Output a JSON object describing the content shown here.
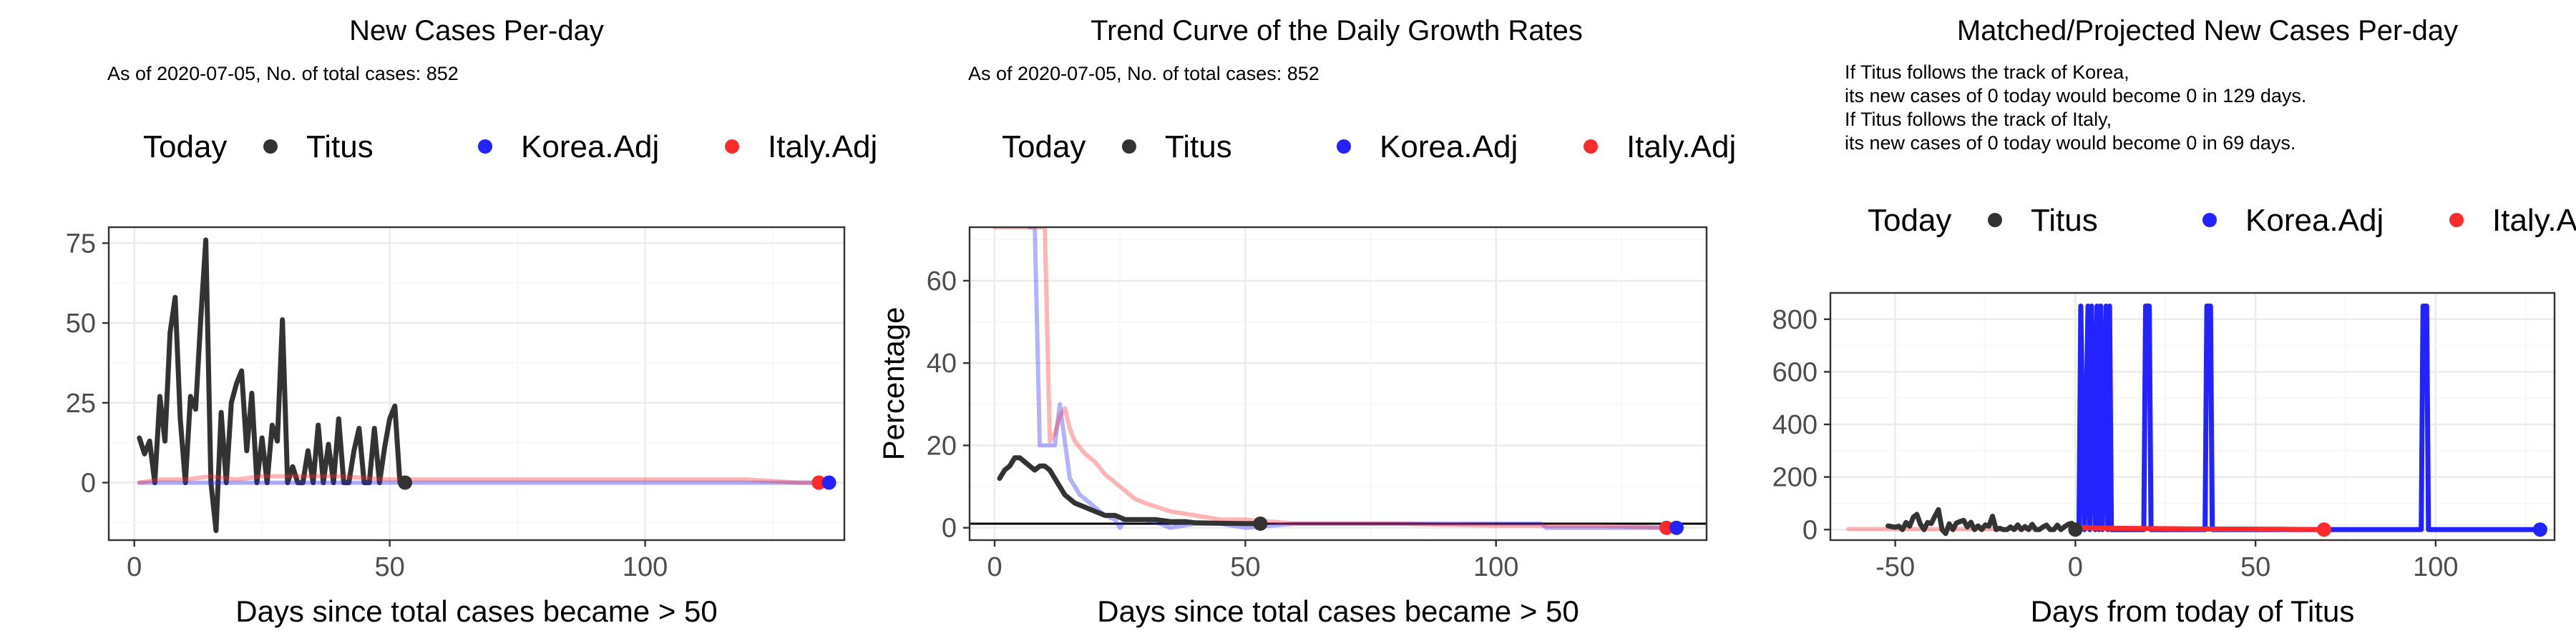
{
  "colors": {
    "titus": "#333333",
    "korea": "#2323ff",
    "italy": "#ff2a2a",
    "grid_major": "#ebebeb",
    "grid_minor": "#f5f5f5",
    "panel_border": "#333333"
  },
  "legend": {
    "title": "Today",
    "items": [
      {
        "label": "Titus",
        "color_key": "titus"
      },
      {
        "label": "Korea.Adj",
        "color_key": "korea"
      },
      {
        "label": "Italy.Adj",
        "color_key": "italy"
      }
    ]
  },
  "chart_data": [
    {
      "type": "line",
      "title": "New Cases Per-day",
      "subtitle_lines": [
        "As of 2020-07-05, No. of total cases: 852"
      ],
      "xlabel": "Days since total cases became > 50",
      "ylabel": "",
      "xlim": [
        -5,
        139
      ],
      "ylim": [
        -18,
        80
      ],
      "xticks": [
        0,
        50,
        100
      ],
      "yticks": [
        0,
        25,
        50,
        75
      ],
      "grid": true,
      "legend_position": "top",
      "series": [
        {
          "name": "Titus",
          "color_key": "titus",
          "opacity": 1,
          "x": [
            1,
            2,
            3,
            4,
            5,
            6,
            7,
            8,
            9,
            10,
            11,
            12,
            13,
            14,
            15,
            16,
            17,
            18,
            19,
            20,
            21,
            22,
            23,
            24,
            25,
            26,
            27,
            28,
            29,
            30,
            31,
            32,
            33,
            34,
            35,
            36,
            37,
            38,
            39,
            40,
            41,
            42,
            43,
            44,
            45,
            46,
            47,
            48,
            49,
            50,
            51,
            52,
            53
          ],
          "y": [
            14,
            9,
            13,
            0,
            27,
            13,
            47,
            58,
            20,
            0,
            27,
            23,
            51,
            76,
            0,
            -15,
            22,
            0,
            25,
            31,
            35,
            10,
            28,
            0,
            14,
            0,
            18,
            13,
            51,
            0,
            5,
            0,
            0,
            10,
            0,
            18,
            0,
            12,
            0,
            20,
            0,
            0,
            10,
            17,
            0,
            0,
            17,
            0,
            11,
            20,
            24,
            0,
            0
          ]
        },
        {
          "name": "Korea.Adj",
          "color_key": "korea",
          "opacity": 0.35,
          "x": [
            1,
            10,
            20,
            30,
            40,
            50,
            60,
            70,
            80,
            90,
            100,
            110,
            120,
            130,
            136
          ],
          "y": [
            0,
            0,
            0,
            0,
            0,
            0,
            0,
            0,
            0,
            0,
            0,
            0,
            0,
            0,
            0
          ]
        },
        {
          "name": "Italy.Adj",
          "color_key": "italy",
          "opacity": 0.35,
          "x": [
            1,
            5,
            10,
            15,
            20,
            25,
            30,
            40,
            50,
            60,
            70,
            80,
            90,
            100,
            110,
            120,
            130,
            134
          ],
          "y": [
            0,
            1,
            1,
            2,
            1,
            2,
            2,
            2,
            1,
            1,
            1,
            1,
            1,
            1,
            1,
            1,
            0,
            0
          ]
        }
      ],
      "today_points": [
        {
          "name": "Titus",
          "color_key": "titus",
          "x": 53,
          "y": 0
        },
        {
          "name": "Italy.Adj",
          "color_key": "italy",
          "x": 134,
          "y": 0
        },
        {
          "name": "Korea.Adj",
          "color_key": "korea",
          "x": 136,
          "y": 0
        }
      ]
    },
    {
      "type": "line",
      "title": "Trend Curve of the Daily Growth Rates",
      "subtitle_lines": [
        "As of 2020-07-05, No. of total cases: 852"
      ],
      "xlabel": "Days since total cases became > 50",
      "ylabel": "Percentage",
      "xlim": [
        -5,
        142
      ],
      "ylim": [
        -3,
        73
      ],
      "xticks": [
        0,
        50,
        100
      ],
      "yticks": [
        0,
        20,
        40,
        60
      ],
      "grid": true,
      "hline": 1,
      "legend_position": "top",
      "series": [
        {
          "name": "Korea.Adj",
          "color_key": "korea",
          "opacity": 0.35,
          "x": [
            7,
            8,
            9,
            10,
            12,
            13,
            15,
            17,
            18,
            20,
            22,
            24,
            25,
            26,
            30,
            33,
            35,
            40,
            45,
            50,
            60,
            80,
            100,
            109,
            110,
            120,
            130,
            136
          ],
          "y": [
            73,
            73,
            20,
            20,
            20,
            30,
            12,
            8,
            7,
            5,
            3,
            2,
            0,
            2,
            2,
            1,
            0,
            1,
            1,
            0,
            1,
            1,
            1,
            1,
            0,
            0,
            0,
            0
          ]
        },
        {
          "name": "Italy.Adj",
          "color_key": "italy",
          "opacity": 0.35,
          "x": [
            0,
            10,
            11,
            12,
            13,
            14,
            15,
            16,
            18,
            20,
            22,
            25,
            28,
            30,
            35,
            40,
            45,
            50,
            60,
            70,
            80,
            100,
            120,
            134
          ],
          "y": [
            73,
            73,
            21,
            23,
            27,
            29,
            24,
            21,
            18,
            16,
            13,
            10,
            7,
            6,
            4,
            3,
            2,
            2,
            1,
            1,
            1,
            0.5,
            0.5,
            0
          ]
        },
        {
          "name": "Titus",
          "color_key": "titus",
          "opacity": 1,
          "x": [
            1,
            2,
            3,
            4,
            5,
            6,
            7,
            8,
            9,
            10,
            11,
            12,
            13,
            14,
            15,
            16,
            18,
            20,
            22,
            24,
            26,
            28,
            30,
            32,
            35,
            38,
            40,
            45,
            50,
            53
          ],
          "y": [
            12,
            14,
            15,
            17,
            17,
            16,
            15,
            14,
            15,
            15,
            14,
            12,
            10,
            8,
            7,
            6,
            5,
            4,
            3,
            3,
            2,
            2,
            2,
            2,
            1.5,
            1.5,
            1.2,
            1.1,
            1,
            1
          ]
        }
      ],
      "today_points": [
        {
          "name": "Titus",
          "color_key": "titus",
          "x": 53,
          "y": 1
        },
        {
          "name": "Italy.Adj",
          "color_key": "italy",
          "x": 134,
          "y": 0
        },
        {
          "name": "Korea.Adj",
          "color_key": "korea",
          "x": 136,
          "y": 0
        }
      ]
    },
    {
      "type": "line",
      "title": "Matched/Projected New Cases Per-day",
      "subtitle_lines": [
        "If Titus follows the track of Korea,",
        "its new cases of 0 today would become 0 in 129 days.",
        "If Titus follows the track of Italy,",
        "its new cases of 0 today would become 0 in 69 days."
      ],
      "xlabel": "Days from today of Titus",
      "ylabel": "",
      "xlim": [
        -68,
        133
      ],
      "ylim": [
        -40,
        900
      ],
      "xticks": [
        -50,
        0,
        50,
        100
      ],
      "yticks": [
        0,
        200,
        400,
        600,
        800
      ],
      "grid": true,
      "legend_position": "top",
      "series": [
        {
          "name": "Italy.Adj (matched)",
          "color_key": "italy",
          "opacity": 0.35,
          "x": [
            -63,
            -10
          ],
          "y": [
            2,
            2
          ]
        },
        {
          "name": "Titus",
          "color_key": "titus",
          "opacity": 1,
          "x": [
            -52,
            -50,
            -49,
            -48,
            -47,
            -46,
            -45,
            -44,
            -43,
            -42,
            -41,
            -40,
            -39,
            -38,
            -37,
            -36,
            -35,
            -34,
            -33,
            -32,
            -31,
            -30,
            -29,
            -28,
            -27,
            -26,
            -25,
            -24,
            -23,
            -22,
            -21,
            -20,
            -19,
            -18,
            -17,
            -16,
            -15,
            -14,
            -13,
            -12,
            -11,
            -10,
            -9,
            -8,
            -7,
            -6,
            -5,
            -4,
            -3,
            -2,
            -1,
            0
          ],
          "y": [
            14,
            9,
            13,
            0,
            27,
            13,
            47,
            58,
            20,
            0,
            27,
            23,
            51,
            76,
            0,
            -15,
            22,
            0,
            25,
            31,
            35,
            10,
            28,
            0,
            14,
            0,
            18,
            13,
            51,
            0,
            5,
            0,
            0,
            10,
            0,
            18,
            0,
            12,
            0,
            20,
            0,
            0,
            10,
            17,
            0,
            0,
            17,
            0,
            11,
            20,
            24,
            0
          ]
        },
        {
          "name": "Korea.Adj",
          "color_key": "korea",
          "opacity": 1,
          "x": [
            0,
            1,
            1.5,
            2.5,
            3.5,
            4,
            4.5,
            5.5,
            6,
            6.5,
            7,
            7.5,
            8.5,
            9,
            9.5,
            10,
            11,
            19,
            19.5,
            20.5,
            21,
            22,
            36,
            36.5,
            37.5,
            38,
            39,
            96,
            96.5,
            97.5,
            98,
            99,
            129
          ],
          "y": [
            0,
            0,
            850,
            0,
            850,
            0,
            850,
            0,
            850,
            0,
            850,
            0,
            850,
            0,
            850,
            0,
            0,
            0,
            850,
            850,
            0,
            0,
            0,
            850,
            850,
            0,
            0,
            0,
            850,
            850,
            0,
            0,
            0
          ]
        },
        {
          "name": "Italy.Adj",
          "color_key": "italy",
          "opacity": 1,
          "x": [
            0,
            5,
            10,
            20,
            30,
            40,
            50,
            60,
            69
          ],
          "y": [
            8,
            6,
            5,
            4,
            3,
            2,
            2,
            1,
            0
          ]
        }
      ],
      "today_points": [
        {
          "name": "Titus",
          "color_key": "titus",
          "x": 0,
          "y": 0
        },
        {
          "name": "Italy.Adj",
          "color_key": "italy",
          "x": 69,
          "y": 0
        },
        {
          "name": "Korea.Adj",
          "color_key": "korea",
          "x": 129,
          "y": 0
        }
      ]
    }
  ]
}
